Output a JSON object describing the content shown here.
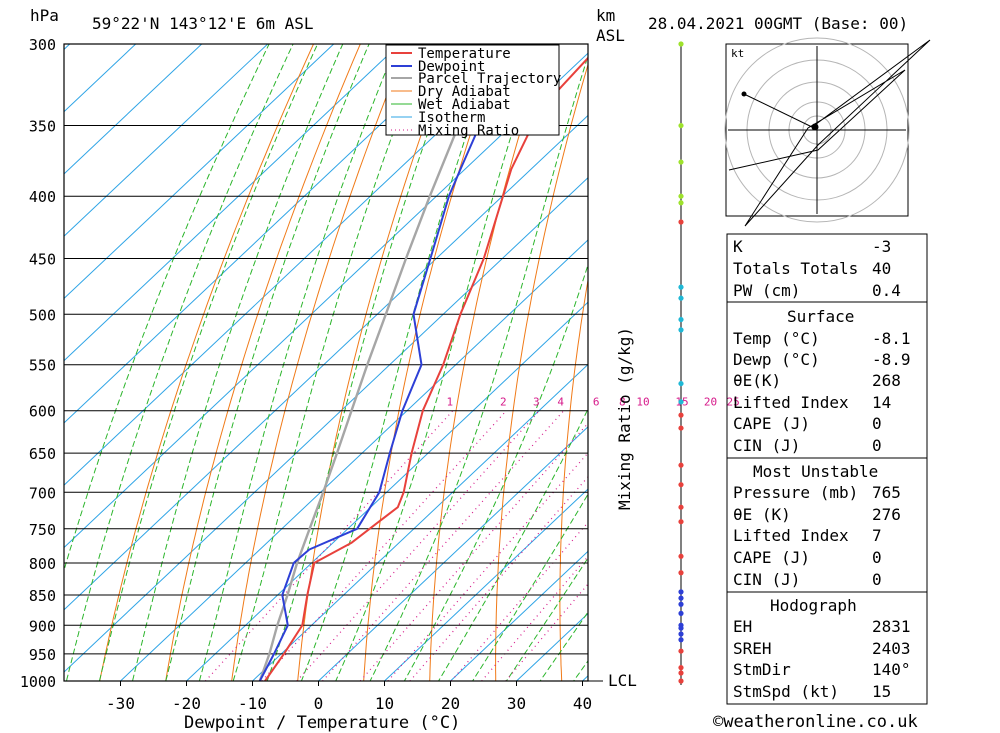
{
  "header": {
    "pressure_unit": "hPa",
    "location": "59°22'N  143°12'E  6m  ASL",
    "height_unit_line1": "km",
    "height_unit_line2": "ASL",
    "datetime": "28.04.2021  00GMT  (Base: 00)"
  },
  "footer": {
    "credit": "©weatheronline.co.uk"
  },
  "chart_data": {
    "type": "line",
    "subtype": "skew-t log-p",
    "xlabel": "Dewpoint / Temperature (°C)",
    "ylabel": "hPa",
    "right_axis_label": "Mixing Ratio (g/kg)",
    "x_ticks": [
      "-30",
      "-20",
      "-10",
      "0",
      "10",
      "20",
      "30",
      "40"
    ],
    "x_tick_values": [
      -30,
      -20,
      -10,
      0,
      10,
      20,
      30,
      40
    ],
    "pressure_levels": [
      300,
      350,
      400,
      450,
      500,
      550,
      600,
      650,
      700,
      750,
      800,
      850,
      900,
      950,
      1000
    ],
    "mixing_ratio_labels": [
      "1",
      "2",
      "3",
      "4",
      "6",
      "8",
      "10",
      "15",
      "20",
      "25"
    ],
    "mixing_ratio_values": [
      1,
      2,
      3,
      4,
      6,
      8,
      10,
      15,
      20,
      25
    ],
    "lcl_label": "LCL",
    "legend": [
      "Temperature",
      "Dewpoint",
      "Parcel Trajectory",
      "Dry Adiabat",
      "Wet Adiabat",
      "Isotherm",
      "Mixing Ratio"
    ],
    "colors": {
      "temperature": "#e8413c",
      "dewpoint": "#2d3fd6",
      "parcel": "#a6a6a6",
      "dry_adiabat": "#f07a18",
      "wet_adiabat": "#2bb52b",
      "isotherm": "#2ea4e6",
      "mixing_ratio": "#d6198a"
    },
    "series": [
      {
        "name": "Temperature",
        "points": [
          [
            1000,
            -8.1
          ],
          [
            950,
            -9.6
          ],
          [
            900,
            -11.4
          ],
          [
            850,
            -15.5
          ],
          [
            800,
            -19.6
          ],
          [
            770,
            -17.2
          ],
          [
            750,
            -16.7
          ],
          [
            720,
            -15.9
          ],
          [
            700,
            -17.4
          ],
          [
            650,
            -22.5
          ],
          [
            600,
            -27.6
          ],
          [
            550,
            -31.9
          ],
          [
            500,
            -37.4
          ],
          [
            450,
            -42.8
          ],
          [
            400,
            -49.9
          ],
          [
            380,
            -53.0
          ],
          [
            350,
            -56.8
          ],
          [
            330,
            -58.5
          ],
          [
            300,
            -59.5
          ]
        ]
      },
      {
        "name": "Dewpoint",
        "points": [
          [
            1000,
            -8.9
          ],
          [
            950,
            -11.1
          ],
          [
            900,
            -13.6
          ],
          [
            850,
            -19.3
          ],
          [
            800,
            -22.7
          ],
          [
            780,
            -22.5
          ],
          [
            750,
            -18.6
          ],
          [
            700,
            -21.1
          ],
          [
            650,
            -25.8
          ],
          [
            600,
            -30.7
          ],
          [
            550,
            -35.2
          ],
          [
            500,
            -44.5
          ],
          [
            450,
            -50.9
          ],
          [
            400,
            -58.1
          ],
          [
            380,
            -60.7
          ],
          [
            350,
            -64.8
          ],
          [
            330,
            -68.4
          ],
          [
            300,
            -69.5
          ]
        ]
      },
      {
        "name": "Parcel Trajectory",
        "points": [
          [
            1000,
            -8.9
          ],
          [
            950,
            -11.8
          ],
          [
            900,
            -15.2
          ],
          [
            850,
            -18.5
          ],
          [
            800,
            -22.2
          ],
          [
            750,
            -25.8
          ],
          [
            700,
            -29.6
          ],
          [
            650,
            -33.8
          ],
          [
            600,
            -38.4
          ],
          [
            550,
            -43.4
          ],
          [
            500,
            -48.7
          ],
          [
            450,
            -54.6
          ],
          [
            400,
            -61.0
          ],
          [
            350,
            -68.0
          ],
          [
            300,
            -75.2
          ]
        ]
      }
    ]
  },
  "wind_profile": {
    "dots_pressure": [
      300,
      350,
      375,
      400,
      405,
      420,
      475,
      485,
      505,
      515,
      570,
      590,
      605,
      620,
      665,
      690,
      720,
      740,
      790,
      815,
      845,
      855,
      865,
      880,
      900,
      905,
      915,
      925,
      945,
      975,
      985,
      1000
    ]
  },
  "hodograph": {
    "unit": "kt"
  },
  "indices": {
    "general": [
      {
        "label": "K",
        "value": "-3"
      },
      {
        "label": "Totals Totals",
        "value": "40"
      },
      {
        "label": "PW (cm)",
        "value": "0.4"
      }
    ],
    "surface": {
      "title": "Surface",
      "rows": [
        {
          "label": "Temp (°C)",
          "value": "-8.1"
        },
        {
          "label": "Dewp (°C)",
          "value": "-8.9"
        },
        {
          "label": "θE(K)",
          "value": "268"
        },
        {
          "label": "Lifted Index",
          "value": "14"
        },
        {
          "label": "CAPE (J)",
          "value": "0"
        },
        {
          "label": "CIN (J)",
          "value": "0"
        }
      ]
    },
    "most_unstable": {
      "title": "Most Unstable",
      "rows": [
        {
          "label": "Pressure (mb)",
          "value": "765"
        },
        {
          "label": "θE (K)",
          "value": "276"
        },
        {
          "label": "Lifted Index",
          "value": "7"
        },
        {
          "label": "CAPE (J)",
          "value": "0"
        },
        {
          "label": "CIN (J)",
          "value": "0"
        }
      ]
    },
    "hodograph": {
      "title": "Hodograph",
      "rows": [
        {
          "label": "EH",
          "value": "2831"
        },
        {
          "label": "SREH",
          "value": "2403"
        },
        {
          "label": "StmDir",
          "value": "140°"
        },
        {
          "label": "StmSpd (kt)",
          "value": "15"
        }
      ]
    }
  }
}
